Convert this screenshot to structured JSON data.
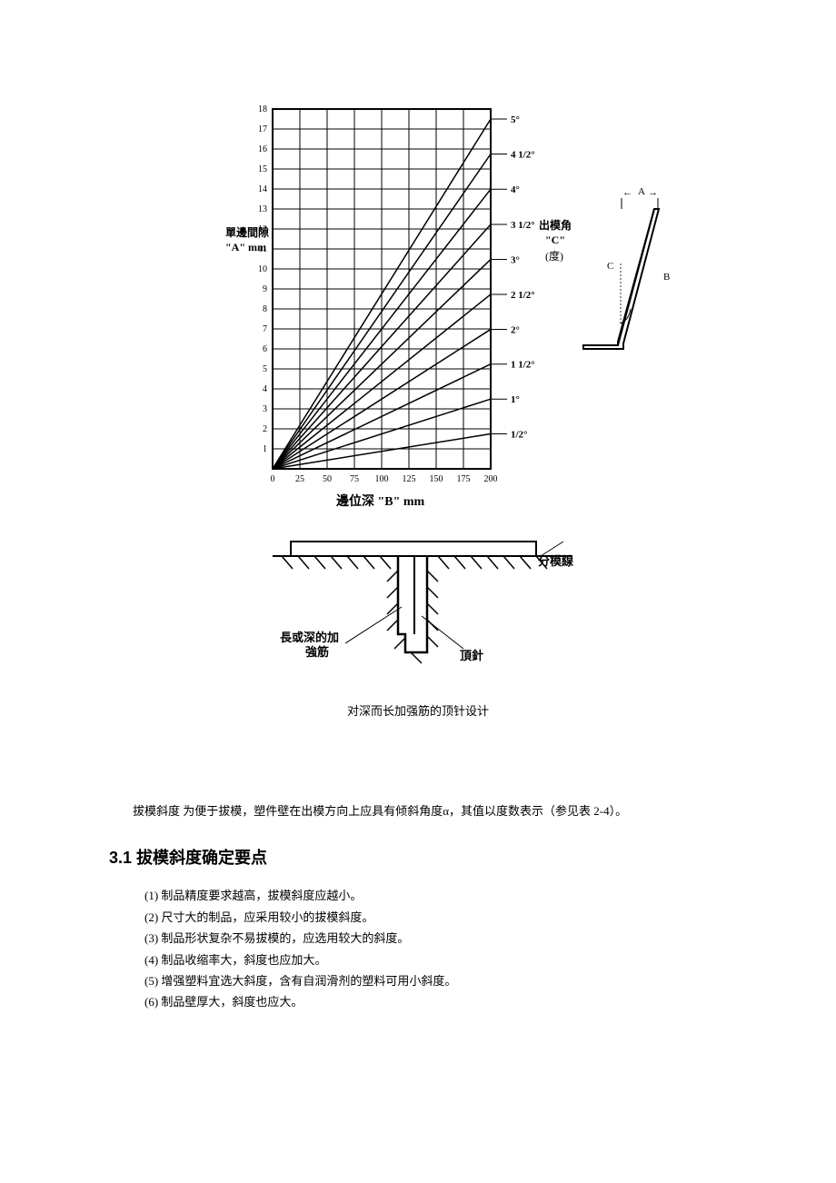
{
  "chart": {
    "type": "line",
    "y_axis_label_line1": "單邊間隙",
    "y_axis_label_line2": "\"A\" mm",
    "x_axis_label": "邊位深 \"B\" mm",
    "right_label_line1": "出模角",
    "right_label_line2": "\"C\"",
    "right_label_line3": "(度)",
    "x_ticks": [
      "0",
      "25",
      "50",
      "75",
      "100",
      "125",
      "150",
      "175",
      "200"
    ],
    "y_ticks": [
      "1",
      "2",
      "3",
      "4",
      "5",
      "6",
      "7",
      "8",
      "9",
      "10",
      "11",
      "12",
      "13",
      "14",
      "15",
      "16",
      "17",
      "18"
    ],
    "xlim": [
      0,
      200
    ],
    "ylim": [
      0,
      18
    ],
    "x_tick_step": 25,
    "y_tick_step": 1,
    "grid_color": "#000000",
    "background_color": "#ffffff",
    "line_color": "#000000",
    "line_width": 1.5,
    "tick_fontsize": 10,
    "label_fontsize": 12,
    "series": [
      {
        "label": "1/2°",
        "x": [
          0,
          200
        ],
        "y": [
          0,
          1.75
        ]
      },
      {
        "label": "1°",
        "x": [
          0,
          200
        ],
        "y": [
          0,
          3.49
        ]
      },
      {
        "label": "1 1/2°",
        "x": [
          0,
          200
        ],
        "y": [
          0,
          5.24
        ]
      },
      {
        "label": "2°",
        "x": [
          0,
          200
        ],
        "y": [
          0,
          6.98
        ]
      },
      {
        "label": "2 1/2°",
        "x": [
          0,
          200
        ],
        "y": [
          0,
          8.73
        ]
      },
      {
        "label": "3°",
        "x": [
          0,
          200
        ],
        "y": [
          0,
          10.48
        ]
      },
      {
        "label": "3 1/2°",
        "x": [
          0,
          200
        ],
        "y": [
          0,
          12.23
        ]
      },
      {
        "label": "4°",
        "x": [
          0,
          200
        ],
        "y": [
          0,
          13.99
        ]
      },
      {
        "label": "4 1/2°",
        "x": [
          0,
          200
        ],
        "y": [
          0,
          15.75
        ]
      },
      {
        "label": "5°",
        "x": [
          0,
          200
        ],
        "y": [
          0,
          17.5
        ]
      }
    ],
    "side_diagram": {
      "label_A": "A",
      "label_B": "B",
      "label_C": "C"
    }
  },
  "section_diagram": {
    "caption": "对深而长加强筋的顶针设计",
    "label_parting": "分模線",
    "label_rib_line1": "長或深的加",
    "label_rib_line2": "強筋",
    "label_pin": "頂針"
  },
  "paragraph": "拔模斜度 为便于拔模，塑件壁在出模方向上应具有倾斜角度α，其值以度数表示（参见表 2-4）。",
  "heading": "3.1 拔模斜度确定要点",
  "list_items": [
    "(1) 制品精度要求越高，拔模斜度应越小。",
    "(2) 尺寸大的制品，应采用较小的拔模斜度。",
    "(3) 制品形状复杂不易拔模的，应选用较大的斜度。",
    "(4) 制品收缩率大，斜度也应加大。",
    "(5) 增强塑料宜选大斜度，含有自润滑剂的塑料可用小斜度。",
    "(6) 制品壁厚大，斜度也应大。"
  ]
}
